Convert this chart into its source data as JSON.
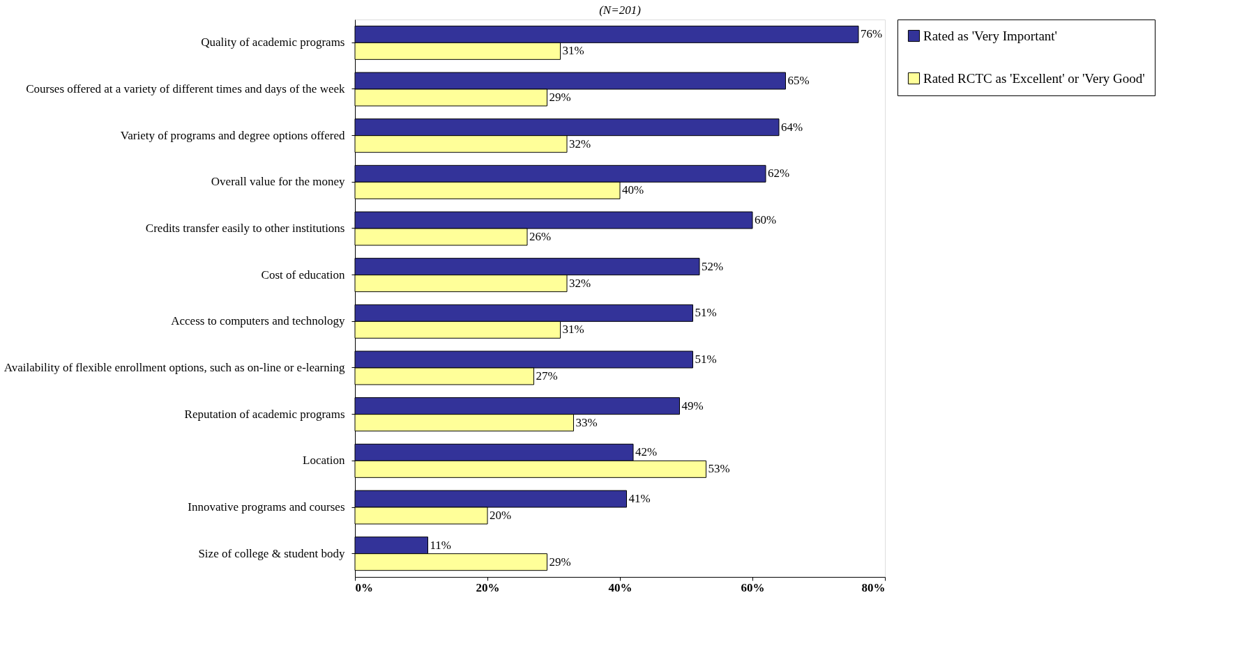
{
  "chart_data": {
    "type": "bar",
    "orientation": "horizontal",
    "subtitle": "(N=201)",
    "categories": [
      "Quality of academic programs",
      "Courses offered at a variety of different times and days of the week",
      "Variety of programs and degree options offered",
      "Overall value for the money",
      "Credits transfer easily to other institutions",
      "Cost of education",
      "Access to computers and technology",
      "Availability of flexible enrollment options, such as on-line or e-learning",
      "Reputation of academic programs",
      "Location",
      "Innovative programs and courses",
      "Size of college & student body"
    ],
    "series": [
      {
        "name": "Rated as 'Very Important'",
        "color": "#333399",
        "values": [
          76,
          65,
          64,
          62,
          60,
          52,
          51,
          51,
          49,
          42,
          41,
          11
        ],
        "value_labels": [
          "76%",
          "65%",
          "64%",
          "62%",
          "60%",
          "52%",
          "51%",
          "51%",
          "49%",
          "42%",
          "41%",
          "11%"
        ]
      },
      {
        "name": "Rated RCTC as 'Excellent' or 'Very Good'",
        "color": "#ffff99",
        "values": [
          31,
          29,
          32,
          40,
          26,
          32,
          31,
          27,
          33,
          53,
          20,
          29
        ],
        "value_labels": [
          "31%",
          "29%",
          "32%",
          "40%",
          "26%",
          "32%",
          "31%",
          "27%",
          "33%",
          "53%",
          "20%",
          "29%"
        ]
      }
    ],
    "xlim": [
      0,
      80
    ],
    "xticks": [
      {
        "value": 0,
        "label": "0%"
      },
      {
        "value": 20,
        "label": "20%"
      },
      {
        "value": 40,
        "label": "40%"
      },
      {
        "value": 60,
        "label": "60%"
      },
      {
        "value": 80,
        "label": "80%"
      }
    ],
    "grid": false,
    "legend": "right"
  }
}
